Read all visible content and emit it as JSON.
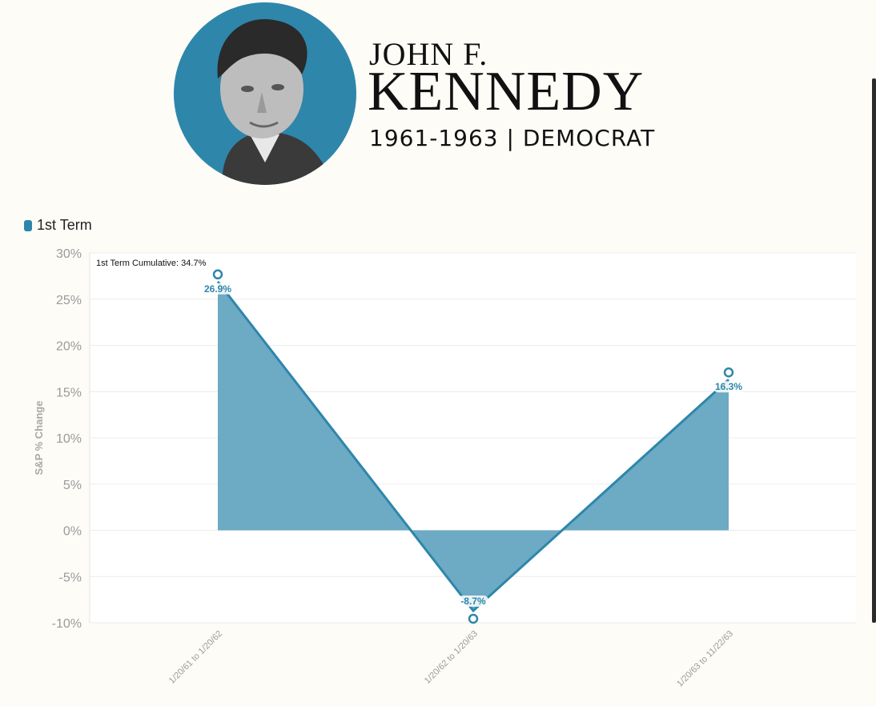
{
  "header": {
    "name_top": "JOHN F.",
    "name_main": "KENNEDY",
    "subtitle": "1961-1963 | DEMOCRAT",
    "portrait_icon": "portrait-photo",
    "portrait_bg": "#2e86ab"
  },
  "legend": {
    "label": "1st Term",
    "color": "#2e86ab"
  },
  "annotation": "1st Term Cumulative: 34.7%",
  "chart_data": {
    "type": "area",
    "categories": [
      "1/20/61 to 1/20/62",
      "1/20/62 to 1/20/63",
      "1/20/63 to 11/22/63"
    ],
    "series": [
      {
        "name": "1st Term",
        "values": [
          26.9,
          -8.7,
          16.3
        ],
        "labels": [
          "26.9%",
          "-8.7%",
          "16.3%"
        ]
      }
    ],
    "ylabel": "S&P % Change",
    "ylim": [
      -10,
      30
    ],
    "yticks": [
      30,
      25,
      20,
      15,
      10,
      5,
      0,
      -5,
      -10
    ],
    "ytick_labels": [
      "30%",
      "25%",
      "20%",
      "15%",
      "10%",
      "5%",
      "0%",
      "-5%",
      "-10%"
    ],
    "grid": true,
    "legend_position": "top-left",
    "line_color": "#2e86ab",
    "fill_color": "#6aa8c3"
  }
}
